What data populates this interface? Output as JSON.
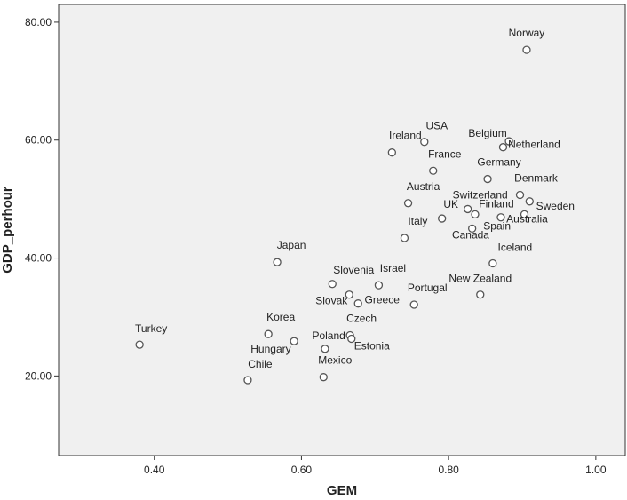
{
  "chart_data": {
    "type": "scatter",
    "title": "",
    "xlabel": "GEM",
    "ylabel": "GDP_perhour",
    "xlim": [
      0.27,
      1.04
    ],
    "ylim": [
      6.5,
      83
    ],
    "xticks": [
      "0.40",
      "0.60",
      "0.80",
      "1.00"
    ],
    "yticks": [
      "20.00",
      "40.00",
      "60.00",
      "80.00"
    ],
    "grid": false,
    "colors": {
      "plot_background": "#f0f0f0",
      "marker_stroke": "#555555",
      "marker_fill": "#ffffff"
    },
    "points": [
      {
        "label": "Norway",
        "x": 0.906,
        "y": 75.3,
        "lx": 0,
        "ly": -15
      },
      {
        "label": "USA",
        "x": 0.767,
        "y": 59.7,
        "lx": 14,
        "ly": -14
      },
      {
        "label": "Belgium",
        "x": 0.882,
        "y": 59.8,
        "lx": -24,
        "ly": -5
      },
      {
        "label": "Netherland",
        "x": 0.874,
        "y": 58.8,
        "lx": 35,
        "ly": 1
      },
      {
        "label": "Ireland",
        "x": 0.723,
        "y": 57.9,
        "lx": 15,
        "ly": -15
      },
      {
        "label": "France",
        "x": 0.779,
        "y": 54.8,
        "lx": 13,
        "ly": -15
      },
      {
        "label": "Germany",
        "x": 0.853,
        "y": 53.4,
        "lx": 13,
        "ly": -15
      },
      {
        "label": "Denmark",
        "x": 0.897,
        "y": 50.7,
        "lx": 18,
        "ly": -15
      },
      {
        "label": "Austria",
        "x": 0.745,
        "y": 49.3,
        "lx": 17,
        "ly": -15
      },
      {
        "label": "Switzerland",
        "x": 0.826,
        "y": 48.3,
        "lx": 14,
        "ly": -12
      },
      {
        "label": "Finland",
        "x": 0.871,
        "y": 46.9,
        "lx": -5,
        "ly": -11
      },
      {
        "label": "UK",
        "x": 0.791,
        "y": 46.7,
        "lx": 10,
        "ly": -12
      },
      {
        "label": "Sweden",
        "x": 0.91,
        "y": 49.6,
        "lx": 29,
        "ly": 9
      },
      {
        "label": "Australia",
        "x": 0.903,
        "y": 47.4,
        "lx": 3,
        "ly": 9
      },
      {
        "label": "Spain",
        "x": 0.832,
        "y": 45.0,
        "lx": 28,
        "ly": 1
      },
      {
        "label": "Italy",
        "x": 0.74,
        "y": 43.4,
        "lx": 15,
        "ly": -15
      },
      {
        "label": "Canada",
        "x": 0.836,
        "y": 47.4,
        "lx": -5,
        "ly": 27
      },
      {
        "label": "Iceland",
        "x": 0.86,
        "y": 39.1,
        "lx": 25,
        "ly": -14
      },
      {
        "label": "Japan",
        "x": 0.567,
        "y": 39.3,
        "lx": 16,
        "ly": -15
      },
      {
        "label": "Slovenia",
        "x": 0.642,
        "y": 35.6,
        "lx": 24,
        "ly": -12
      },
      {
        "label": "Israel",
        "x": 0.705,
        "y": 35.4,
        "lx": 16,
        "ly": -15
      },
      {
        "label": "New Zealand",
        "x": 0.843,
        "y": 33.8,
        "lx": 0,
        "ly": -14
      },
      {
        "label": "Slovak",
        "x": 0.665,
        "y": 33.8,
        "lx": -20,
        "ly": 11
      },
      {
        "label": "Greece",
        "x": 0.677,
        "y": 32.3,
        "lx": 27,
        "ly": 0
      },
      {
        "label": "Portugal",
        "x": 0.753,
        "y": 32.1,
        "lx": 15,
        "ly": -15
      },
      {
        "label": "Korea",
        "x": 0.555,
        "y": 27.1,
        "lx": 14,
        "ly": -15
      },
      {
        "label": "Czech",
        "x": 0.666,
        "y": 26.9,
        "lx": 13,
        "ly": -15
      },
      {
        "label": "Poland",
        "x": 0.59,
        "y": 25.9,
        "lx": 39,
        "ly": -2
      },
      {
        "label": "Turkey",
        "x": 0.38,
        "y": 25.3,
        "lx": 13,
        "ly": -14
      },
      {
        "label": "Estonia",
        "x": 0.668,
        "y": 26.3,
        "lx": 23,
        "ly": 12
      },
      {
        "label": "Hungary",
        "x": 0.632,
        "y": 24.6,
        "lx": -61,
        "ly": 4
      },
      {
        "label": "Chile",
        "x": 0.527,
        "y": 19.3,
        "lx": 14,
        "ly": -14
      },
      {
        "label": "Mexico",
        "x": 0.63,
        "y": 19.8,
        "lx": 13,
        "ly": -15
      }
    ]
  }
}
